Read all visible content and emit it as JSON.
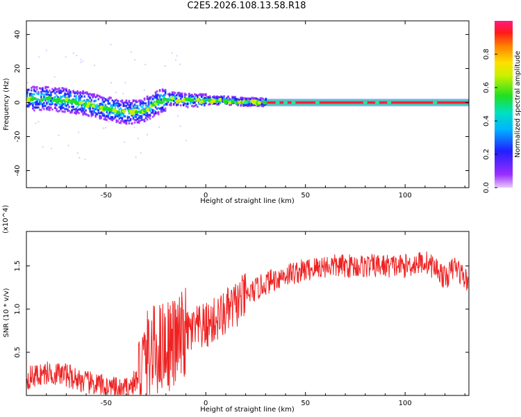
{
  "title": "C2E5.2026.108.13.58.R18",
  "chart_data": [
    {
      "type": "heatmap",
      "xlabel": "Height of straight line (km)",
      "ylabel": "Frequency (Hz)",
      "xlim": [
        -90,
        132
      ],
      "ylim": [
        -50,
        48
      ],
      "xticks": [
        -50,
        0,
        50,
        100
      ],
      "yticks": [
        -40,
        -20,
        0,
        20,
        40
      ],
      "colorbar": {
        "label": "Normalized spectral amplitude",
        "range": [
          0,
          1
        ],
        "ticks": [
          "0.0",
          "0.2",
          "0.4",
          "0.6",
          "0.8"
        ],
        "colormap": "rainbow"
      },
      "ridge": [
        {
          "x": -90,
          "y": 2
        },
        {
          "x": -80,
          "y": 2
        },
        {
          "x": -70,
          "y": 1
        },
        {
          "x": -60,
          "y": -1
        },
        {
          "x": -50,
          "y": -4
        },
        {
          "x": -40,
          "y": -6
        },
        {
          "x": -32,
          "y": -5
        },
        {
          "x": -24,
          "y": 0
        },
        {
          "x": -18,
          "y": 2
        },
        {
          "x": -10,
          "y": 1
        },
        {
          "x": 0,
          "y": 1
        },
        {
          "x": 10,
          "y": 1
        },
        {
          "x": 20,
          "y": 0
        },
        {
          "x": 40,
          "y": 0
        },
        {
          "x": 80,
          "y": 0
        },
        {
          "x": 132,
          "y": 0
        }
      ]
    },
    {
      "type": "line",
      "xlabel": "Height of straight line (km)",
      "ylabel": "SNR (10 * v/v)",
      "y_multiplier": "(x10^4)",
      "xlim": [
        -90,
        132
      ],
      "ylim": [
        0,
        1.9
      ],
      "xticks": [
        -50,
        0,
        50,
        100
      ],
      "yticks": [
        0.5,
        1.0,
        1.5
      ],
      "color": "#ee2222",
      "series": [
        {
          "trend": [
            {
              "x": -90,
              "y": 0.2
            },
            {
              "x": -80,
              "y": 0.26
            },
            {
              "x": -70,
              "y": 0.24
            },
            {
              "x": -60,
              "y": 0.15
            },
            {
              "x": -50,
              "y": 0.1
            },
            {
              "x": -42,
              "y": 0.05
            },
            {
              "x": -38,
              "y": 0.1
            },
            {
              "x": -34,
              "y": 0.2
            },
            {
              "x": -30,
              "y": 0.45
            },
            {
              "x": -20,
              "y": 0.6
            },
            {
              "x": -15,
              "y": 0.6
            },
            {
              "x": -10,
              "y": 0.72
            },
            {
              "x": 0,
              "y": 0.8
            },
            {
              "x": 10,
              "y": 0.95
            },
            {
              "x": 20,
              "y": 1.15
            },
            {
              "x": 30,
              "y": 1.3
            },
            {
              "x": 40,
              "y": 1.4
            },
            {
              "x": 50,
              "y": 1.45
            },
            {
              "x": 60,
              "y": 1.5
            },
            {
              "x": 80,
              "y": 1.5
            },
            {
              "x": 100,
              "y": 1.5
            },
            {
              "x": 110,
              "y": 1.55
            },
            {
              "x": 117,
              "y": 1.45
            },
            {
              "x": 120,
              "y": 1.35
            },
            {
              "x": 125,
              "y": 1.5
            },
            {
              "x": 132,
              "y": 1.3
            }
          ]
        }
      ]
    }
  ]
}
